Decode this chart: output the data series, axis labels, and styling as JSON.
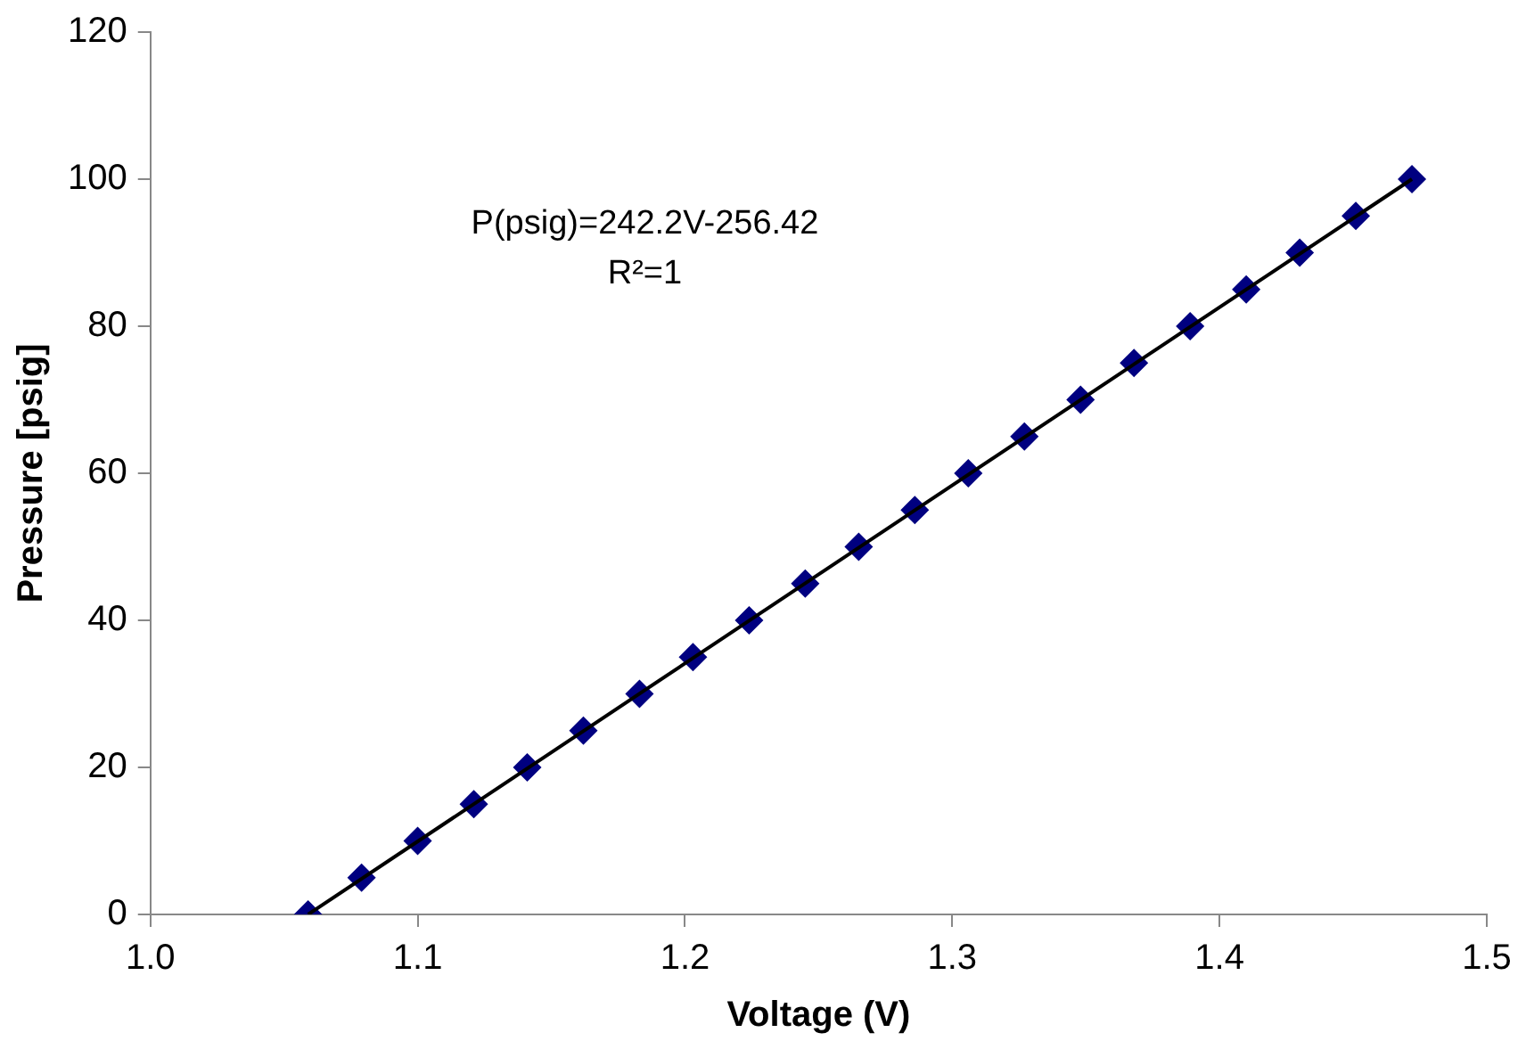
{
  "chart_data": {
    "type": "scatter",
    "xlabel": "Voltage (V)",
    "ylabel": "Pressure [psig]",
    "annotations": [
      "P(psig)=242.2V-256.42",
      "R²=1"
    ],
    "xlim": [
      1.0,
      1.5
    ],
    "xticks": [
      {
        "value": 1.0,
        "label": "1.0"
      },
      {
        "value": 1.1,
        "label": "1.1"
      },
      {
        "value": 1.2,
        "label": "1.2"
      },
      {
        "value": 1.3,
        "label": "1.3"
      },
      {
        "value": 1.4,
        "label": "1.4"
      },
      {
        "value": 1.5,
        "label": "1.5"
      }
    ],
    "ylim": [
      0,
      120
    ],
    "yticks": [
      0,
      20,
      40,
      60,
      80,
      100,
      120
    ],
    "grid": false,
    "legend": false,
    "marker": "diamond",
    "series": [
      {
        "color": "#000080",
        "x": [
          1.059,
          1.079,
          1.1,
          1.121,
          1.141,
          1.162,
          1.183,
          1.203,
          1.224,
          1.245,
          1.265,
          1.286,
          1.306,
          1.327,
          1.348,
          1.368,
          1.389,
          1.41,
          1.43,
          1.451,
          1.472
        ],
        "values": [
          0,
          5,
          10,
          15,
          20,
          25,
          30,
          35,
          40,
          45,
          50,
          55,
          60,
          65,
          70,
          75,
          80,
          85,
          90,
          95,
          100
        ]
      },
      {
        "type": "line",
        "color": "#000000",
        "marker": "none",
        "x": [
          1.059,
          1.472
        ],
        "values": [
          0,
          100
        ]
      }
    ]
  }
}
